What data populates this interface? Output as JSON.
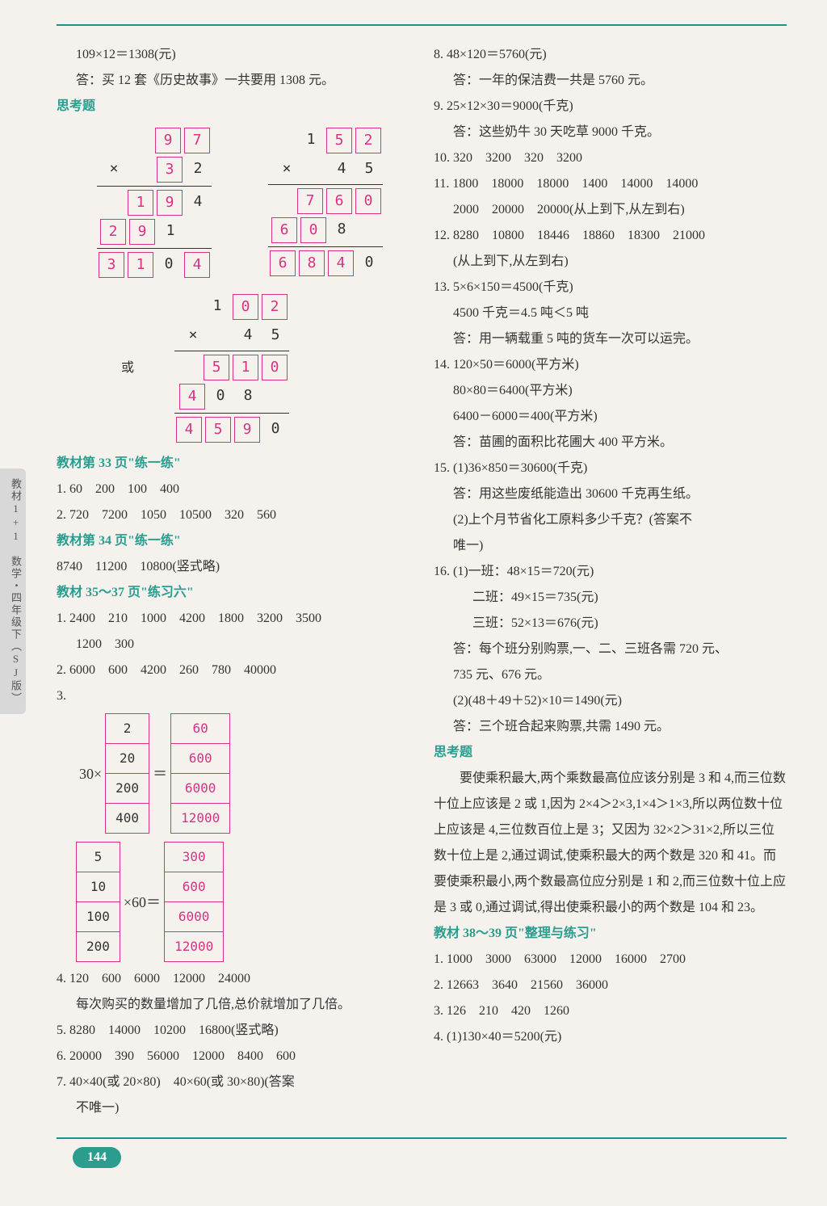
{
  "page_number": "144",
  "side_tab": "教材1+1　数学・四年级下（SJ版）",
  "left": {
    "l1": "109×12＝1308(元)",
    "l2": "答：买 12 套《历史故事》一共要用 1308 元。",
    "think_title": "思考题",
    "mult1": {
      "row1": [
        "",
        "",
        "9",
        "7"
      ],
      "box1": [
        false,
        false,
        true,
        true
      ],
      "row2": [
        "×",
        "",
        "3",
        "2"
      ],
      "box2": [
        false,
        false,
        true,
        false
      ],
      "row3": [
        "",
        "1",
        "9",
        "4"
      ],
      "box3": [
        false,
        true,
        true,
        false
      ],
      "row4": [
        "2",
        "9",
        "1",
        ""
      ],
      "box4": [
        true,
        true,
        false,
        false
      ],
      "row5": [
        "3",
        "1",
        "0",
        "4"
      ],
      "box5": [
        true,
        true,
        false,
        true
      ]
    },
    "mult2": {
      "row1": [
        "",
        "1",
        "5",
        "2"
      ],
      "box1": [
        false,
        false,
        true,
        true
      ],
      "row2": [
        "×",
        "",
        "4",
        "5"
      ],
      "box2": [
        false,
        false,
        false,
        false
      ],
      "row3": [
        "",
        "7",
        "6",
        "0"
      ],
      "box3": [
        false,
        true,
        true,
        true
      ],
      "row4": [
        "6",
        "0",
        "8",
        ""
      ],
      "box4": [
        true,
        true,
        false,
        false
      ],
      "row5": [
        "6",
        "8",
        "4",
        "0"
      ],
      "box5": [
        true,
        true,
        true,
        false
      ]
    },
    "or_label": "或",
    "mult3": {
      "row1": [
        "",
        "1",
        "0",
        "2"
      ],
      "box1": [
        false,
        false,
        true,
        true
      ],
      "row2": [
        "×",
        "",
        "4",
        "5"
      ],
      "box2": [
        false,
        false,
        false,
        false
      ],
      "row3": [
        "",
        "5",
        "1",
        "0"
      ],
      "box3": [
        false,
        true,
        true,
        true
      ],
      "row4": [
        "4",
        "0",
        "8",
        ""
      ],
      "box4": [
        true,
        false,
        false,
        false
      ],
      "row5": [
        "4",
        "5",
        "9",
        "0"
      ],
      "box5": [
        true,
        true,
        true,
        false
      ]
    },
    "s33_title": "教材第 33 页\"练一练\"",
    "s33_1": "1. 60　200　100　400",
    "s33_2": "2. 720　7200　1050　10500　320　560",
    "s34_title": "教材第 34 页\"练一练\"",
    "s34_1": "8740　11200　10800(竖式略)",
    "s35_title": "教材 35～37 页\"练习六\"",
    "s35_1a": "1. 2400　210　1000　4200　1800　3200　3500",
    "s35_1b": "1200　300",
    "s35_2": "2. 6000　600　4200　260　780　40000",
    "s35_3": "3.",
    "tab1_left_prefix": "30×",
    "tab1_left": [
      "2",
      "20",
      "200",
      "400"
    ],
    "tab1_right": [
      "60",
      "600",
      "6000",
      "12000"
    ],
    "tab2_left": [
      "5",
      "10",
      "100",
      "200"
    ],
    "tab2_mid": "×60＝",
    "tab2_right": [
      "300",
      "600",
      "6000",
      "12000"
    ],
    "s35_4a": "4. 120　600　6000　12000　24000",
    "s35_4b": "每次购买的数量增加了几倍,总价就增加了几倍。",
    "s35_5": "5. 8280　14000　10200　16800(竖式略)",
    "s35_6": "6. 20000　390　56000　12000　8400　600",
    "s35_7a": "7. 40×40(或 20×80)　40×60(或 30×80)(答案",
    "s35_7b": "不唯一)"
  },
  "right": {
    "r8a": "8. 48×120＝5760(元)",
    "r8b": "答：一年的保洁费一共是 5760 元。",
    "r9a": "9. 25×12×30＝9000(千克)",
    "r9b": "答：这些奶牛 30 天吃草 9000 千克。",
    "r10": "10. 320　3200　320　3200",
    "r11a": "11. 1800　18000　18000　1400　14000　14000",
    "r11b": "2000　20000　20000(从上到下,从左到右)",
    "r12a": "12. 8280　10800　18446　18860　18300　21000",
    "r12b": "(从上到下,从左到右)",
    "r13a": "13. 5×6×150＝4500(千克)",
    "r13b": "4500 千克＝4.5 吨＜5 吨",
    "r13c": "答：用一辆载重 5 吨的货车一次可以运完。",
    "r14a": "14. 120×50＝6000(平方米)",
    "r14b": "80×80＝6400(平方米)",
    "r14c": "6400－6000＝400(平方米)",
    "r14d": "答：苗圃的面积比花圃大 400 平方米。",
    "r15a": "15. (1)36×850＝30600(千克)",
    "r15b": "答：用这些废纸能造出 30600 千克再生纸。",
    "r15c": "(2)上个月节省化工原料多少千克？(答案不",
    "r15d": "唯一)",
    "r16a": "16. (1)一班：48×15＝720(元)",
    "r16b": "二班：49×15＝735(元)",
    "r16c": "三班：52×13＝676(元)",
    "r16d": "答：每个班分别购票,一、二、三班各需 720 元、",
    "r16e": "735 元、676 元。",
    "r16f": "(2)(48＋49＋52)×10＝1490(元)",
    "r16g": "答：三个班合起来购票,共需 1490 元。",
    "think2": "思考题",
    "think2_body": "　　要使乘积最大,两个乘数最高位应该分别是 3 和 4,而三位数十位上应该是 2 或 1,因为 2×4＞2×3,1×4＞1×3,所以两位数十位上应该是 4,三位数百位上是 3；又因为 32×2＞31×2,所以三位数十位上是 2,通过调试,使乘积最大的两个数是 320 和 41。而要使乘积最小,两个数最高位应分别是 1 和 2,而三位数十位上应是 3 或 0,通过调试,得出使乘积最小的两个数是 104 和 23。",
    "s38_title": "教材 38～39 页\"整理与练习\"",
    "s38_1": "1. 1000　3000　63000　12000　16000　2700",
    "s38_2": "2. 12663　3640　21560　36000",
    "s38_3": "3. 126　210　420　1260",
    "s38_4": "4. (1)130×40＝5200(元)"
  }
}
